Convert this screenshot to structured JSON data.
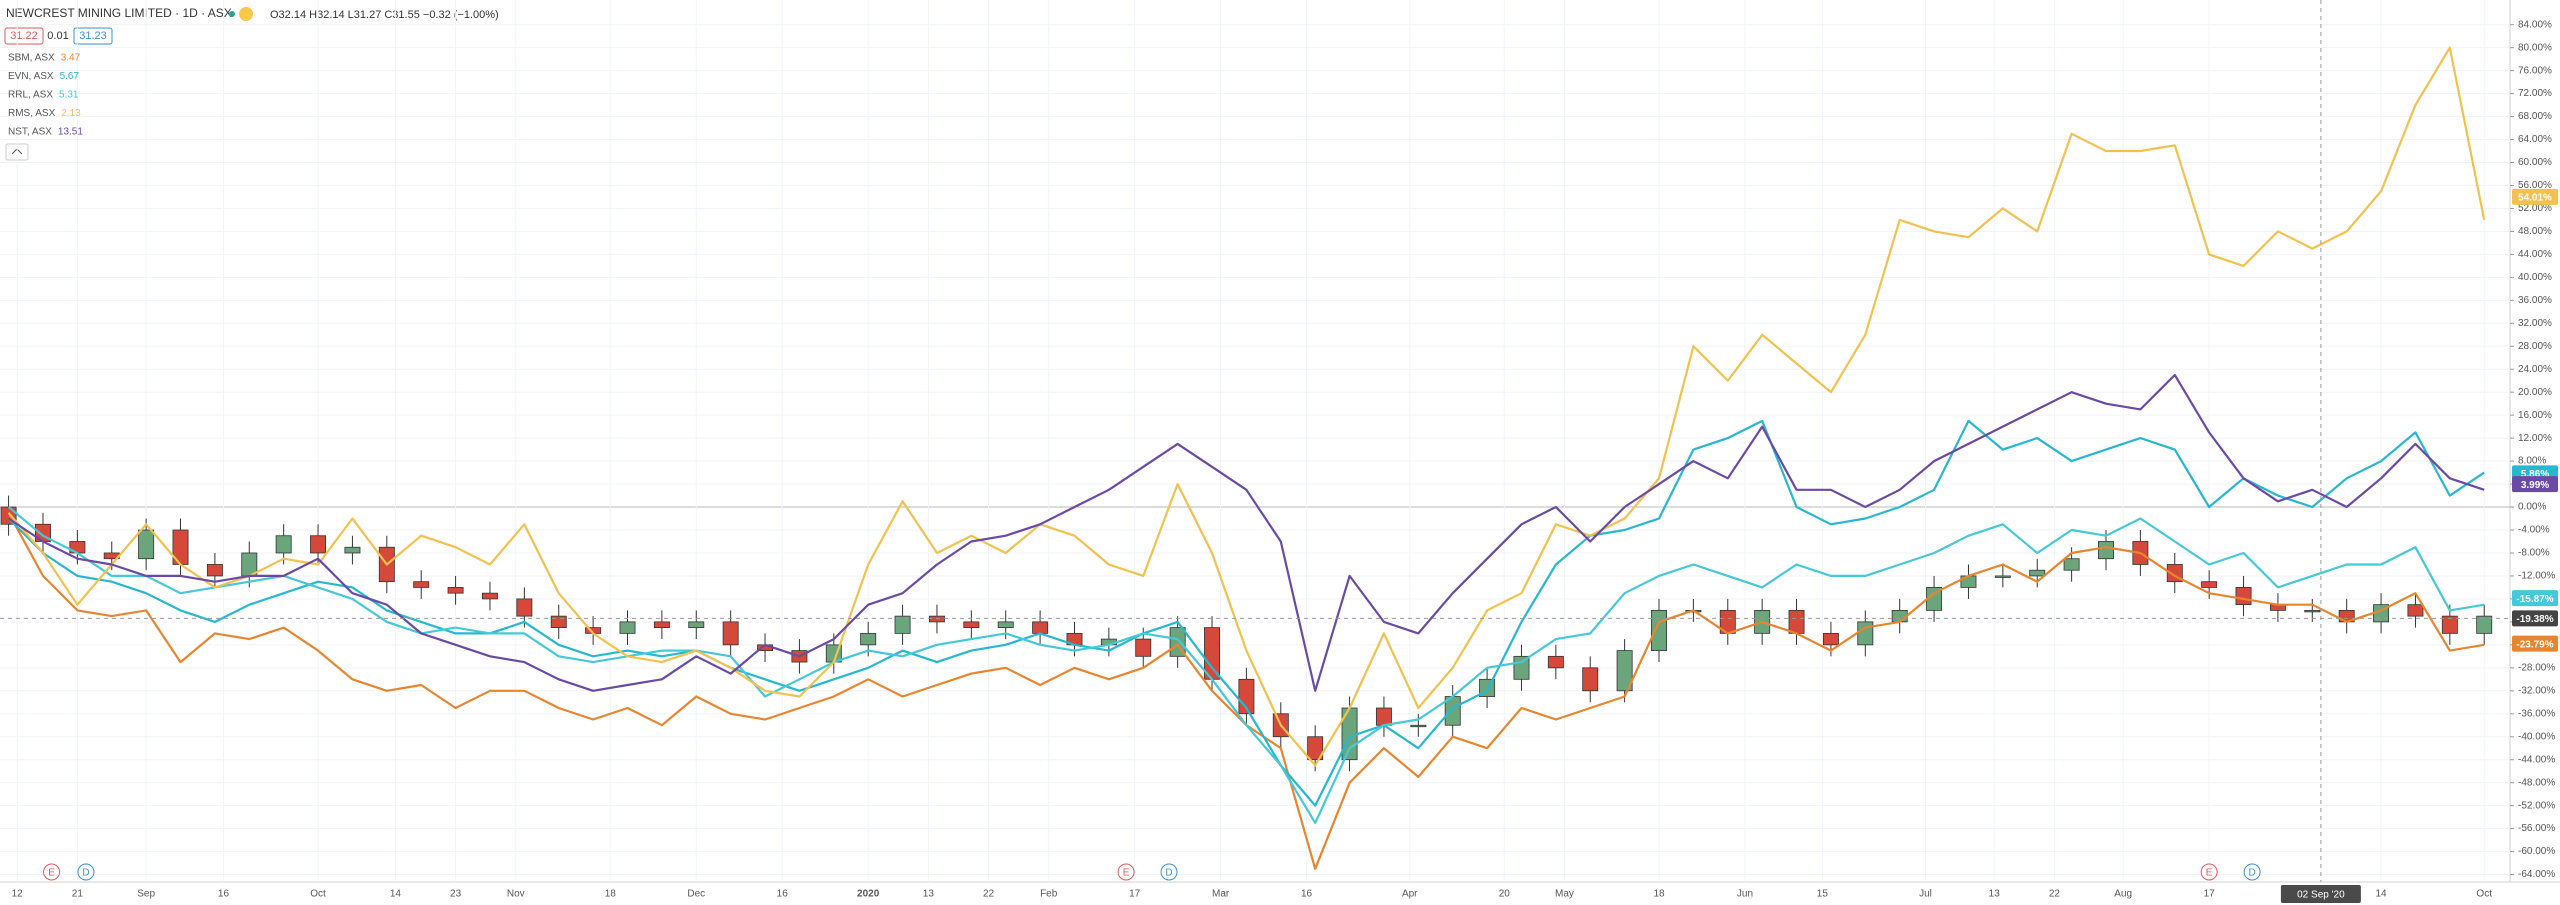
{
  "chart_data": {
    "type": "candlestick",
    "title": "NEWCREST MINING LIMITED · 1D · ASX",
    "ohlc": "O32.14 H32.14 L31.27 C31.55 −0.32 (−1.00%)",
    "bid": 31.22,
    "spread": 0.01,
    "ask": 31.23,
    "x": [
      0,
      4,
      8,
      12,
      16,
      20,
      24,
      28,
      32,
      36,
      40,
      44,
      48,
      52,
      56,
      60,
      64,
      68,
      72,
      76,
      80,
      84,
      88,
      92,
      96,
      100,
      104,
      108,
      112,
      116,
      120,
      124,
      128,
      132,
      136,
      140,
      144,
      148,
      152,
      156,
      160,
      164,
      168,
      172,
      176,
      180,
      184,
      188,
      192,
      196,
      200,
      204,
      208,
      212,
      216,
      220,
      224,
      228,
      232,
      236,
      240,
      244,
      248,
      252,
      256,
      260,
      264,
      268,
      272,
      276,
      280,
      284,
      288
    ],
    "candles": {
      "up_color": "#6aa57c",
      "down_color": "#d4493a",
      "open": [
        0,
        -3,
        -6,
        -8,
        -9,
        -4,
        -10,
        -12,
        -8,
        -5,
        -8,
        -7,
        -13,
        -14,
        -15,
        -16,
        -19,
        -21,
        -22,
        -20,
        -21,
        -20,
        -24,
        -25,
        -27,
        -24,
        -22,
        -19,
        -20,
        -21,
        -20,
        -22,
        -24,
        -23,
        -26,
        -21,
        -30,
        -36,
        -40,
        -44,
        -35,
        -38,
        -38,
        -33,
        -30,
        -26,
        -28,
        -32,
        -25,
        -18,
        -18,
        -22,
        -18,
        -22,
        -24,
        -20,
        -18,
        -14,
        -12,
        -12,
        -11,
        -9,
        -6,
        -10,
        -13,
        -14,
        -17,
        -18,
        -18,
        -20,
        -17,
        -19,
        -22
      ],
      "high": [
        2,
        -1,
        -4,
        -6,
        -2,
        -2,
        -8,
        -6,
        -3,
        -3,
        -5,
        -5,
        -11,
        -12,
        -13,
        -14,
        -17,
        -19,
        -18,
        -18,
        -18,
        -18,
        -22,
        -23,
        -22,
        -20,
        -17,
        -17,
        -18,
        -18,
        -18,
        -20,
        -21,
        -21,
        -19,
        -19,
        -28,
        -34,
        -38,
        -33,
        -33,
        -36,
        -31,
        -28,
        -24,
        -24,
        -26,
        -23,
        -16,
        -16,
        -16,
        -16,
        -16,
        -20,
        -18,
        -16,
        -12,
        -10,
        -10,
        -9,
        -7,
        -4,
        -4,
        -8,
        -11,
        -12,
        -15,
        -16,
        -16,
        -15,
        -15,
        -17,
        -17
      ],
      "low": [
        -5,
        -8,
        -10,
        -11,
        -11,
        -12,
        -14,
        -14,
        -10,
        -10,
        -10,
        -15,
        -16,
        -17,
        -18,
        -21,
        -23,
        -24,
        -24,
        -23,
        -23,
        -26,
        -27,
        -29,
        -29,
        -26,
        -24,
        -22,
        -23,
        -23,
        -24,
        -26,
        -26,
        -28,
        -28,
        -32,
        -38,
        -42,
        -46,
        -46,
        -40,
        -40,
        -40,
        -35,
        -32,
        -30,
        -34,
        -34,
        -27,
        -20,
        -24,
        -24,
        -24,
        -26,
        -26,
        -22,
        -20,
        -16,
        -14,
        -14,
        -13,
        -11,
        -12,
        -15,
        -16,
        -19,
        -20,
        -20,
        -22,
        -22,
        -21,
        -24,
        -24
      ],
      "close": [
        -3,
        -6,
        -8,
        -9,
        -4,
        -10,
        -12,
        -8,
        -5,
        -8,
        -7,
        -13,
        -14,
        -15,
        -16,
        -19,
        -21,
        -22,
        -20,
        -21,
        -20,
        -24,
        -25,
        -27,
        -24,
        -22,
        -19,
        -20,
        -21,
        -20,
        -22,
        -24,
        -23,
        -26,
        -21,
        -30,
        -36,
        -40,
        -44,
        -35,
        -38,
        -38,
        -33,
        -30,
        -26,
        -28,
        -32,
        -25,
        -18,
        -18,
        -22,
        -18,
        -22,
        -24,
        -20,
        -18,
        -14,
        -12,
        -12,
        -11,
        -9,
        -6,
        -10,
        -13,
        -14,
        -17,
        -18,
        -18,
        -20,
        -17,
        -19,
        -22,
        -19
      ],
      "last": {
        "value": -19.38,
        "label": "-19.38%"
      }
    },
    "series": [
      {
        "name": "SBM, ASX",
        "legend_value": 3.47,
        "color": "#e8852e",
        "values": [
          -1,
          -12,
          -18,
          -19,
          -18,
          -27,
          -22,
          -23,
          -21,
          -25,
          -30,
          -32,
          -31,
          -35,
          -32,
          -32,
          -35,
          -37,
          -35,
          -38,
          -33,
          -36,
          -37,
          -35,
          -33,
          -30,
          -33,
          -31,
          -29,
          -28,
          -31,
          -28,
          -30,
          -28,
          -24,
          -32,
          -38,
          -42,
          -63,
          -48,
          -42,
          -47,
          -40,
          -42,
          -35,
          -37,
          -35,
          -33,
          -20,
          -18,
          -22,
          -20,
          -22,
          -25,
          -21,
          -20,
          -15,
          -12,
          -10,
          -13,
          -8,
          -7,
          -8,
          -12,
          -15,
          -16,
          -17,
          -17,
          -20,
          -18,
          -15,
          -25,
          -24
        ],
        "last": {
          "value": -23.79,
          "label": "-23.79%"
        }
      },
      {
        "name": "EVN, ASX",
        "legend_value": 5.67,
        "color": "#27b8cf",
        "values": [
          -2,
          -8,
          -12,
          -13,
          -15,
          -18,
          -20,
          -17,
          -15,
          -13,
          -14,
          -18,
          -20,
          -22,
          -22,
          -20,
          -24,
          -26,
          -25,
          -26,
          -25,
          -28,
          -30,
          -32,
          -30,
          -28,
          -25,
          -27,
          -25,
          -24,
          -22,
          -24,
          -25,
          -22,
          -20,
          -28,
          -35,
          -45,
          -52,
          -40,
          -38,
          -42,
          -35,
          -32,
          -20,
          -10,
          -5,
          -4,
          -2,
          10,
          12,
          15,
          0,
          -3,
          -2,
          0,
          3,
          15,
          10,
          12,
          8,
          10,
          12,
          10,
          0,
          5,
          2,
          0,
          5,
          8,
          13,
          2,
          6
        ],
        "last": {
          "value": 5.86,
          "label": "5.86%"
        }
      },
      {
        "name": "RRL, ASX",
        "legend_value": 5.31,
        "color": "#45c8d8",
        "values": [
          0,
          -5,
          -8,
          -12,
          -12,
          -15,
          -14,
          -13,
          -12,
          -14,
          -16,
          -20,
          -22,
          -21,
          -22,
          -22,
          -26,
          -27,
          -26,
          -25,
          -25,
          -26,
          -33,
          -30,
          -27,
          -25,
          -26,
          -24,
          -23,
          -22,
          -24,
          -25,
          -24,
          -22,
          -23,
          -30,
          -38,
          -45,
          -55,
          -42,
          -38,
          -37,
          -33,
          -28,
          -27,
          -23,
          -22,
          -15,
          -12,
          -10,
          -12,
          -14,
          -10,
          -12,
          -12,
          -10,
          -8,
          -5,
          -3,
          -8,
          -4,
          -5,
          -2,
          -6,
          -10,
          -8,
          -14,
          -12,
          -10,
          -10,
          -7,
          -18,
          -17
        ],
        "last": {
          "value": -15.87,
          "label": "-15.87%"
        }
      },
      {
        "name": "RMS, ASX",
        "legend_value": 2.13,
        "color": "#f2c14e",
        "values": [
          -1,
          -8,
          -17,
          -10,
          -3,
          -10,
          -14,
          -12,
          -9,
          -10,
          -2,
          -10,
          -5,
          -7,
          -10,
          -3,
          -15,
          -22,
          -26,
          -27,
          -25,
          -28,
          -32,
          -33,
          -27,
          -10,
          1,
          -8,
          -5,
          -8,
          -3,
          -5,
          -10,
          -12,
          4,
          -8,
          -25,
          -38,
          -45,
          -35,
          -22,
          -35,
          -28,
          -18,
          -15,
          -3,
          -5,
          -2,
          5,
          28,
          22,
          30,
          25,
          20,
          30,
          50,
          48,
          47,
          52,
          48,
          65,
          62,
          62,
          63,
          44,
          42,
          48,
          45,
          48,
          55,
          70,
          80,
          50
        ],
        "last": {
          "value": 54.01,
          "label": "54.01%"
        }
      },
      {
        "name": "NST, ASX",
        "legend_value": 13.51,
        "color": "#6a4aa5",
        "values": [
          -2,
          -6,
          -9,
          -10,
          -12,
          -12,
          -13,
          -12,
          -12,
          -9,
          -15,
          -17,
          -22,
          -24,
          -26,
          -27,
          -30,
          -32,
          -31,
          -30,
          -26,
          -29,
          -24,
          -26,
          -23,
          -17,
          -15,
          -10,
          -6,
          -5,
          -3,
          0,
          3,
          7,
          11,
          7,
          3,
          -6,
          -32,
          -12,
          -20,
          -22,
          -15,
          -9,
          -3,
          0,
          -6,
          0,
          4,
          8,
          5,
          14,
          3,
          3,
          0,
          3,
          8,
          11,
          14,
          17,
          20,
          18,
          17,
          23,
          13,
          5,
          1,
          3,
          0,
          5,
          11,
          5,
          3
        ],
        "last": {
          "value": 3.99,
          "label": "3.99%"
        }
      }
    ],
    "xlim": [
      -1,
      291
    ],
    "xticks": [
      {
        "value": 1,
        "label": "12"
      },
      {
        "value": 8,
        "label": "21"
      },
      {
        "value": 16,
        "label": "Sep"
      },
      {
        "value": 25,
        "label": "16"
      },
      {
        "value": 36,
        "label": "Oct"
      },
      {
        "value": 45,
        "label": "14"
      },
      {
        "value": 52,
        "label": "23"
      },
      {
        "value": 59,
        "label": "Nov"
      },
      {
        "value": 70,
        "label": "18"
      },
      {
        "value": 80,
        "label": "Dec"
      },
      {
        "value": 90,
        "label": "16"
      },
      {
        "value": 100,
        "label": "2020"
      },
      {
        "value": 107,
        "label": "13"
      },
      {
        "value": 114,
        "label": "22"
      },
      {
        "value": 121,
        "label": "Feb"
      },
      {
        "value": 131,
        "label": "17"
      },
      {
        "value": 141,
        "label": "Mar"
      },
      {
        "value": 151,
        "label": "16"
      },
      {
        "value": 163,
        "label": "Apr"
      },
      {
        "value": 174,
        "label": "20"
      },
      {
        "value": 181,
        "label": "May"
      },
      {
        "value": 192,
        "label": "18"
      },
      {
        "value": 202,
        "label": "Jun"
      },
      {
        "value": 211,
        "label": "15"
      },
      {
        "value": 223,
        "label": "Jul"
      },
      {
        "value": 231,
        "label": "13"
      },
      {
        "value": 238,
        "label": "22"
      },
      {
        "value": 246,
        "label": "Aug"
      },
      {
        "value": 256,
        "label": "17"
      },
      {
        "value": 276,
        "label": "14"
      },
      {
        "value": 288,
        "label": "Oct"
      }
    ],
    "ylim": [
      -65.3,
      88.3
    ],
    "yticks": [
      {
        "value": -64,
        "label": "-64.00%"
      },
      {
        "value": -60,
        "label": "-60.00%"
      },
      {
        "value": -56,
        "label": "-56.00%"
      },
      {
        "value": -52,
        "label": "-52.00%"
      },
      {
        "value": -48,
        "label": "-48.00%"
      },
      {
        "value": -44,
        "label": "-44.00%"
      },
      {
        "value": -40,
        "label": "-40.00%"
      },
      {
        "value": -36,
        "label": "-36.00%"
      },
      {
        "value": -32,
        "label": "-32.00%"
      },
      {
        "value": -28,
        "label": "-28.00%"
      },
      {
        "value": -24,
        "label": "-24.00%"
      },
      {
        "value": -20,
        "label": "-20.00%"
      },
      {
        "value": -16,
        "label": "-16.00%"
      },
      {
        "value": -12,
        "label": "-12.00%"
      },
      {
        "value": -8,
        "label": "-8.00%"
      },
      {
        "value": -4,
        "label": "-4.00%"
      },
      {
        "value": 0,
        "label": "0.00%"
      },
      {
        "value": 4,
        "label": "4.00%"
      },
      {
        "value": 8,
        "label": "8.00%"
      },
      {
        "value": 12,
        "label": "12.00%"
      },
      {
        "value": 16,
        "label": "16.00%"
      },
      {
        "value": 20,
        "label": "20.00%"
      },
      {
        "value": 24,
        "label": "24.00%"
      },
      {
        "value": 28,
        "label": "28.00%"
      },
      {
        "value": 32,
        "label": "32.00%"
      },
      {
        "value": 36,
        "label": "36.00%"
      },
      {
        "value": 40,
        "label": "40.00%"
      },
      {
        "value": 44,
        "label": "44.00%"
      },
      {
        "value": 48,
        "label": "48.00%"
      },
      {
        "value": 52,
        "label": "52.00%"
      },
      {
        "value": 56,
        "label": "56.00%"
      },
      {
        "value": 60,
        "label": "60.00%"
      },
      {
        "value": 64,
        "label": "64.00%"
      },
      {
        "value": 68,
        "label": "68.00%"
      },
      {
        "value": 72,
        "label": "72.00%"
      },
      {
        "value": 76,
        "label": "76.00%"
      },
      {
        "value": 80,
        "label": "80.00%"
      },
      {
        "value": 84,
        "label": "84.00%"
      }
    ],
    "grid": true,
    "events": [
      {
        "label": "E",
        "x": 5,
        "color": "#e05a5a"
      },
      {
        "label": "D",
        "x": 9,
        "color": "#3a8fd0"
      },
      {
        "label": "E",
        "x": 130,
        "color": "#e05a5a"
      },
      {
        "label": "D",
        "x": 135,
        "color": "#3a8fd0"
      },
      {
        "label": "E",
        "x": 256,
        "color": "#e05a5a"
      },
      {
        "label": "D",
        "x": 261,
        "color": "#3a8fd0"
      }
    ],
    "crosshair": {
      "x": 269,
      "label": "02 Sep '20"
    }
  }
}
